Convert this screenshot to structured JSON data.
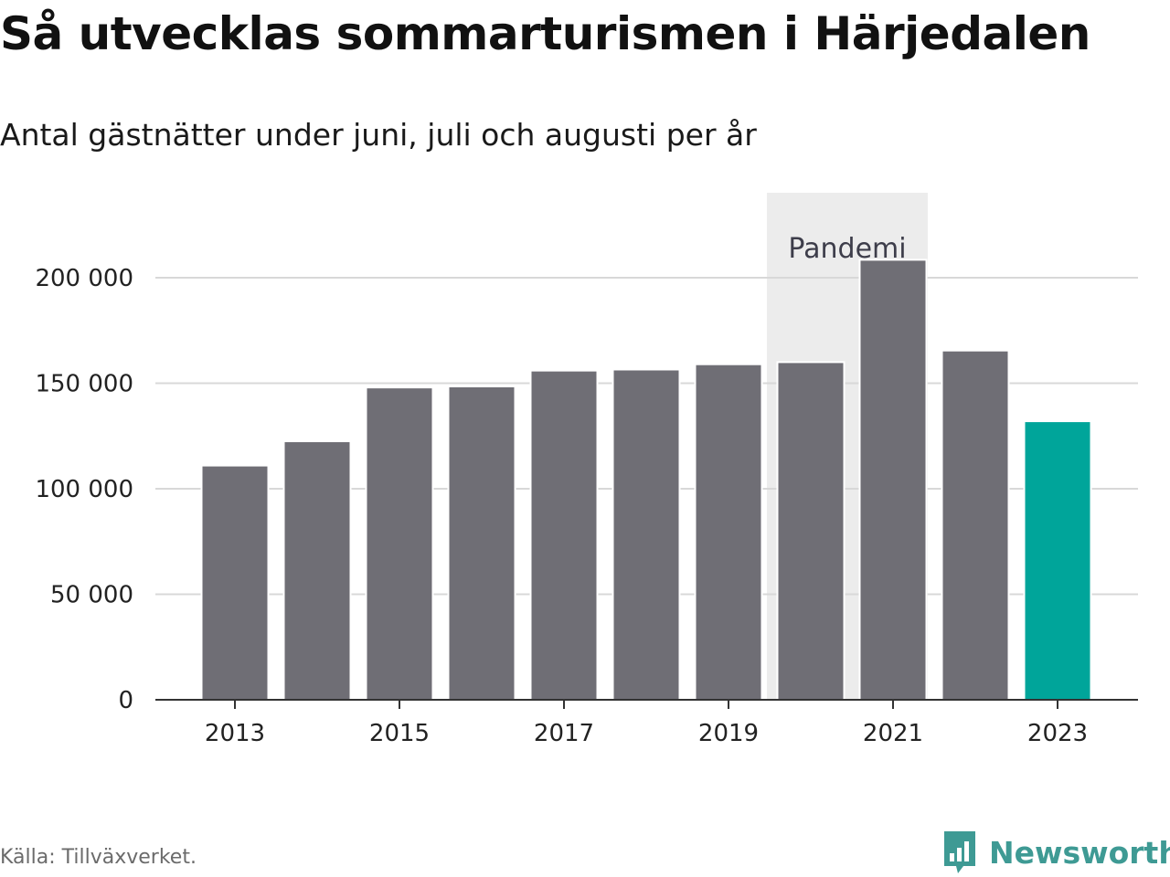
{
  "title": "Så utvecklas sommarturismen i Härjedalen",
  "subtitle": "Antal gästnätter under juni, juli och augusti per år",
  "source": "Källa: Tillväxverket.",
  "brand": {
    "name": "Newsworthy",
    "logo_icon": "bar-chart-speech-bubble-icon"
  },
  "colors": {
    "bar": "#6f6e75",
    "highlight": "#00a59a",
    "pandemic_band": "#ececec",
    "grid": "#d8d8d8",
    "axis": "#333333",
    "brand": "#3e9a94"
  },
  "chart_data": {
    "type": "bar",
    "categories": [
      "2013",
      "2014",
      "2015",
      "2016",
      "2017",
      "2018",
      "2019",
      "2020",
      "2021",
      "2022",
      "2023"
    ],
    "values": [
      111000,
      122500,
      148000,
      148500,
      156000,
      156500,
      159000,
      160000,
      208500,
      165500,
      132000
    ],
    "highlight_category": "2023",
    "x_tick_labels": [
      "2013",
      "2015",
      "2017",
      "2019",
      "2021",
      "2023"
    ],
    "y_ticks": [
      0,
      50000,
      100000,
      150000,
      200000
    ],
    "y_tick_labels": [
      "0",
      "50 000",
      "100 000",
      "150 000",
      "200 000"
    ],
    "ylim": [
      0,
      240000
    ],
    "grid": true,
    "annotation": {
      "text": "Pandemi",
      "from": "2020",
      "to": "2021"
    }
  }
}
